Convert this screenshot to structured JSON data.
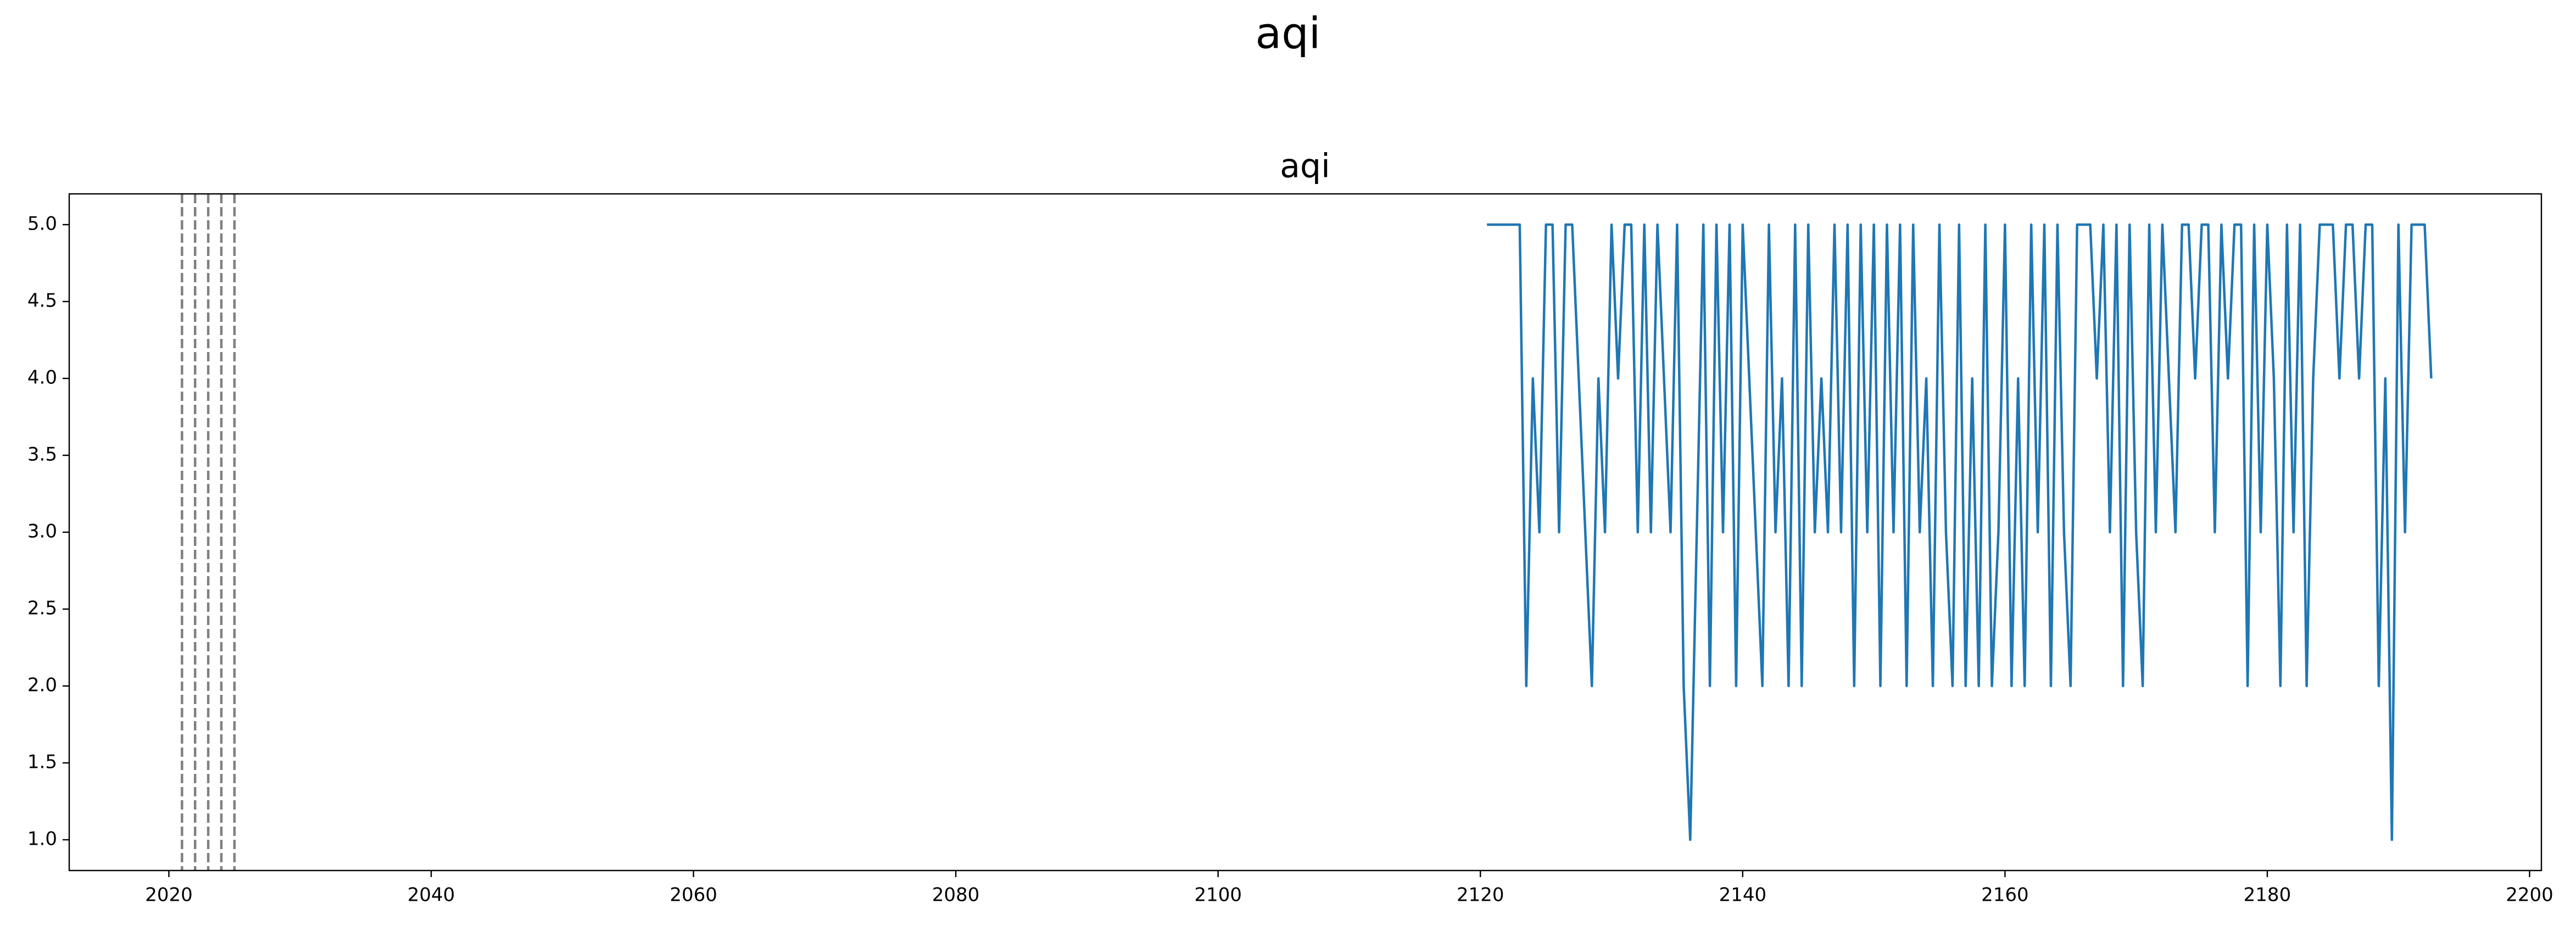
{
  "chart_data": {
    "type": "line",
    "suptitle": "aqi",
    "title": "aqi",
    "x": [
      2120.5,
      2121,
      2121.5,
      2122,
      2122.5,
      2123,
      2123.5,
      2124,
      2124.5,
      2125,
      2125.5,
      2126,
      2126.5,
      2127,
      2127.5,
      2128,
      2128.5,
      2129,
      2129.5,
      2130,
      2130.5,
      2131,
      2131.5,
      2132,
      2132.5,
      2133,
      2133.5,
      2134,
      2134.5,
      2135,
      2135.5,
      2136,
      2136.5,
      2137,
      2137.5,
      2138,
      2138.5,
      2139,
      2139.5,
      2140,
      2140.5,
      2141,
      2141.5,
      2142,
      2142.5,
      2143,
      2143.5,
      2144,
      2144.5,
      2145,
      2145.5,
      2146,
      2146.5,
      2147,
      2147.5,
      2148,
      2148.5,
      2149,
      2149.5,
      2150,
      2150.5,
      2151,
      2151.5,
      2152,
      2152.5,
      2153,
      2153.5,
      2154,
      2154.5,
      2155,
      2155.5,
      2156,
      2156.5,
      2157,
      2157.5,
      2158,
      2158.5,
      2159,
      2159.5,
      2160,
      2160.5,
      2161,
      2161.5,
      2162,
      2162.5,
      2163,
      2163.5,
      2164,
      2164.5,
      2165,
      2165.5,
      2166,
      2166.5,
      2167,
      2167.5,
      2168,
      2168.5,
      2169,
      2169.5,
      2170,
      2170.5,
      2171,
      2171.5,
      2172,
      2172.5,
      2173,
      2173.5,
      2174,
      2174.5,
      2175,
      2175.5,
      2176,
      2176.5,
      2177,
      2177.5,
      2178,
      2178.5,
      2179,
      2179.5,
      2180,
      2180.5,
      2181,
      2181.5,
      2182,
      2182.5,
      2183,
      2183.5,
      2184,
      2184.5,
      2185,
      2185.5,
      2186,
      2186.5,
      2187,
      2187.5,
      2188,
      2188.5,
      2189,
      2189.5,
      2190,
      2190.5,
      2191,
      2191.5,
      2192,
      2192.5
    ],
    "values": [
      5,
      5,
      5,
      5,
      5,
      5,
      2,
      4,
      3,
      5,
      5,
      3,
      5,
      5,
      4,
      3,
      2,
      4,
      3,
      5,
      4,
      5,
      5,
      3,
      5,
      3,
      5,
      4,
      3,
      5,
      2,
      1,
      3,
      5,
      2,
      5,
      3,
      5,
      2,
      5,
      4,
      3,
      2,
      5,
      3,
      4,
      2,
      5,
      2,
      5,
      3,
      4,
      3,
      5,
      3,
      5,
      2,
      5,
      3,
      5,
      2,
      5,
      3,
      5,
      2,
      5,
      3,
      4,
      2,
      5,
      3,
      2,
      5,
      2,
      4,
      2,
      5,
      2,
      3,
      5,
      2,
      4,
      2,
      5,
      3,
      5,
      2,
      5,
      3,
      2,
      5,
      5,
      5,
      4,
      5,
      3,
      5,
      2,
      5,
      3,
      2,
      5,
      3,
      5,
      4,
      3,
      5,
      5,
      4,
      5,
      5,
      3,
      5,
      4,
      5,
      5,
      2,
      5,
      3,
      5,
      4,
      2,
      5,
      3,
      5,
      2,
      4,
      5,
      5,
      5,
      4,
      5,
      5,
      4,
      5,
      5,
      2,
      4,
      1,
      5,
      3,
      5,
      5,
      5,
      4
    ],
    "color": "#1f77b4",
    "vlines": {
      "x": [
        2021,
        2022,
        2023,
        2024,
        2025
      ],
      "color": "#808080",
      "style": "dashed"
    },
    "xlim": [
      2012.4,
      2200.9
    ],
    "xticks": [
      2020,
      2040,
      2060,
      2080,
      2100,
      2120,
      2140,
      2160,
      2180,
      2200
    ],
    "ylim": [
      0.8,
      5.2
    ],
    "yticks": [
      {
        "value": 1,
        "label": "1.0"
      },
      {
        "value": 1.5,
        "label": "1.5"
      },
      {
        "value": 2,
        "label": "2.0"
      },
      {
        "value": 2.5,
        "label": "2.5"
      },
      {
        "value": 3,
        "label": "3.0"
      },
      {
        "value": 3.5,
        "label": "3.5"
      },
      {
        "value": 4,
        "label": "4.0"
      },
      {
        "value": 4.5,
        "label": "4.5"
      },
      {
        "value": 5,
        "label": "5.0"
      }
    ],
    "grid": false
  }
}
